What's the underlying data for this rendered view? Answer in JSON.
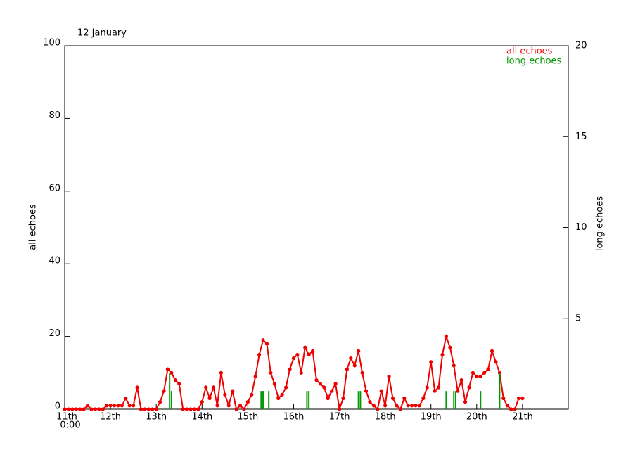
{
  "chart_data": {
    "type": "line",
    "title": "12 January",
    "ylabel": "all echoes",
    "y2label": "long echoes",
    "x_start_time": "0:00",
    "x": [
      0,
      2,
      4,
      6,
      8,
      10,
      12,
      14,
      16,
      18,
      20,
      22,
      24,
      26,
      28,
      30,
      32,
      34,
      36,
      38,
      40,
      42,
      44,
      46,
      48,
      50,
      52,
      54,
      56,
      58,
      60,
      62,
      64,
      66,
      68,
      70,
      72,
      74,
      76,
      78,
      80,
      82,
      84,
      86,
      88,
      90,
      92,
      94,
      96,
      98,
      100,
      102,
      104,
      106,
      108,
      110,
      112,
      114,
      116,
      118,
      120,
      122,
      124,
      126,
      128,
      130,
      132,
      134,
      136,
      138,
      140,
      142,
      144,
      146,
      148,
      150,
      152,
      154,
      156,
      158,
      160,
      162,
      164,
      166,
      168,
      170,
      172,
      174,
      176,
      178,
      180,
      182,
      184,
      186,
      188,
      190,
      192,
      194,
      196,
      198,
      200,
      202,
      204,
      206,
      208,
      210,
      212,
      214,
      216,
      218,
      220,
      222,
      224,
      226,
      228,
      230,
      232,
      234,
      236,
      238,
      240
    ],
    "series": [
      {
        "name": "all echoes",
        "color": "#ee0000",
        "values": [
          0,
          0,
          0,
          0,
          0,
          0,
          1,
          0,
          0,
          0,
          0,
          1,
          1,
          1,
          1,
          1,
          3,
          1,
          1,
          6,
          0,
          0,
          0,
          0,
          0,
          2,
          5,
          11,
          10,
          8,
          7,
          0,
          0,
          0,
          0,
          0,
          2,
          6,
          3,
          6,
          1,
          10,
          4,
          1,
          5,
          0,
          1,
          0,
          2,
          4,
          9,
          15,
          19,
          18,
          10,
          7,
          3,
          4,
          6,
          11,
          14,
          15,
          10,
          17,
          15,
          16,
          8,
          7,
          6,
          3,
          5,
          7,
          0,
          3,
          11,
          14,
          12,
          16,
          10,
          5,
          2,
          1,
          0,
          5,
          1,
          9,
          3,
          1,
          0,
          3,
          1,
          1,
          1,
          1,
          3,
          6,
          13,
          5,
          6,
          15,
          20,
          17,
          12,
          5,
          8,
          2,
          6,
          10,
          9,
          9,
          10,
          11,
          16,
          13,
          10,
          3,
          1,
          0,
          0,
          3,
          3
        ]
      },
      {
        "name": "long echoes",
        "color": "#009900",
        "axis": "y2",
        "x": [
          55,
          56,
          103,
          104,
          107,
          127,
          128,
          154,
          155,
          200,
          204,
          205,
          218,
          228
        ],
        "values": [
          2,
          1,
          1,
          1,
          1,
          1,
          1,
          1,
          1,
          1,
          1,
          1,
          1,
          2
        ]
      }
    ],
    "xlim": [
      0,
      264
    ],
    "xticks": [
      {
        "value": 0,
        "label": "11th"
      },
      {
        "value": 24,
        "label": "12th"
      },
      {
        "value": 48,
        "label": "13th"
      },
      {
        "value": 72,
        "label": "14th"
      },
      {
        "value": 96,
        "label": "15th"
      },
      {
        "value": 120,
        "label": "16th"
      },
      {
        "value": 144,
        "label": "17th"
      },
      {
        "value": 168,
        "label": "18th"
      },
      {
        "value": 192,
        "label": "19th"
      },
      {
        "value": 216,
        "label": "20th"
      },
      {
        "value": 240,
        "label": "21th"
      }
    ],
    "ylim": [
      0,
      100
    ],
    "yticks": [
      0,
      20,
      40,
      60,
      80,
      100
    ],
    "y2lim": [
      0,
      20
    ],
    "y2ticks": [
      5,
      10,
      15,
      20
    ],
    "legend": "upper right"
  }
}
